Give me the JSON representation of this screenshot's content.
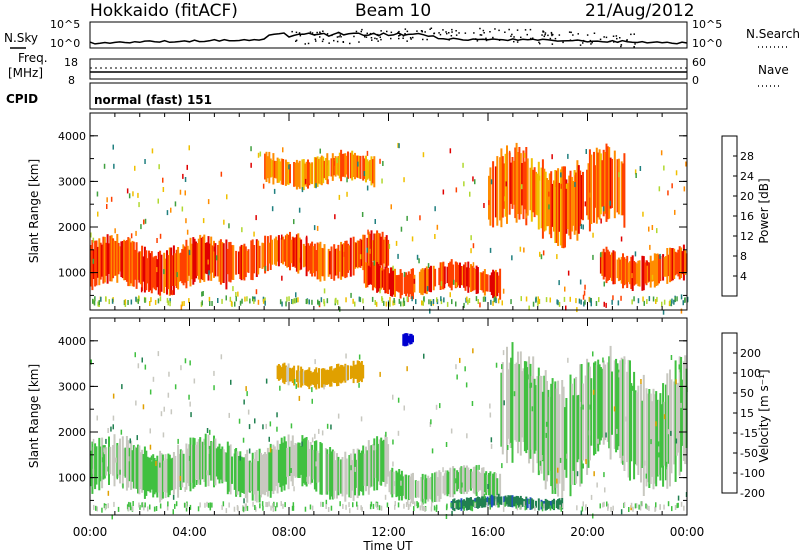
{
  "header": {
    "station": "Hokkaido (fitACF)",
    "beam": "Beam 10",
    "date": "21/Aug/2012"
  },
  "noise_panel": {
    "left_label": "N.Sky",
    "right_label": "N.Search",
    "ticks": [
      "10^5",
      "10^0"
    ],
    "right_ticks": [
      "10^5",
      "10^0"
    ]
  },
  "freq_panel": {
    "label_line1": "Freq.",
    "label_line2": "[MHz]",
    "left_ticks": [
      "18",
      "8"
    ],
    "right_ticks": [
      "60",
      "0"
    ],
    "right_label": "Nave"
  },
  "cpid_panel": {
    "label": "CPID",
    "value": "normal (fast) 151"
  },
  "axes": {
    "xlabel": "Time UT",
    "x_ticks": [
      "00:00",
      "04:00",
      "08:00",
      "12:00",
      "16:00",
      "20:00",
      "00:00"
    ],
    "ylabel": "Slant Range [km]",
    "y_ticks": [
      "4000",
      "3000",
      "2000",
      "1000"
    ]
  },
  "colorbars": {
    "power": {
      "label": "Power [dB]",
      "ticks": [
        "28",
        "24",
        "20",
        "16",
        "12",
        "8",
        "4"
      ],
      "colors": [
        "#e00000",
        "#ff4000",
        "#ff8c00",
        "#f0c000",
        "#b0d830",
        "#40a040",
        "#208080",
        "#0000e0"
      ]
    },
    "velocity": {
      "label": "Velocity [m s⁻¹]",
      "ticks": [
        "200",
        "100",
        "50",
        "15",
        "-15",
        "-50",
        "-100",
        "-200"
      ],
      "colors": [
        "#0000d0",
        "#2050c0",
        "#208050",
        "#40c040",
        "#c8c8c0",
        "#e0a000",
        "#ff6000",
        "#e00000"
      ]
    }
  },
  "chart_data": {
    "type": "heatmap",
    "title": "Hokkaido (fitACF) Beam 10 21/Aug/2012",
    "xlabel": "Time UT",
    "ylabel": "Slant Range [km]",
    "x_range_hours": [
      0,
      24
    ],
    "y_range_km": [
      180,
      4500
    ],
    "panels": [
      {
        "name": "Power",
        "unit": "dB",
        "colorbar_range": [
          0,
          32
        ],
        "bands": [
          {
            "t_start": 0.0,
            "t_end": 5.5,
            "r_low": 600,
            "r_high": 1700,
            "value": 26
          },
          {
            "t_start": 5.5,
            "t_end": 12.0,
            "r_low": 900,
            "r_high": 1800,
            "value": 25
          },
          {
            "t_start": 11.0,
            "t_end": 16.5,
            "r_low": 500,
            "r_high": 1200,
            "value": 27
          },
          {
            "t_start": 7.0,
            "t_end": 11.5,
            "r_low": 2900,
            "r_high": 3600,
            "value": 22
          },
          {
            "t_start": 16.0,
            "t_end": 21.5,
            "r_low": 1800,
            "r_high": 3600,
            "value": 24
          },
          {
            "t_start": 20.5,
            "t_end": 24.0,
            "r_low": 700,
            "r_high": 1500,
            "value": 25
          }
        ]
      },
      {
        "name": "Velocity",
        "unit": "m s^-1",
        "colorbar_range": [
          -200,
          200
        ],
        "bands": [
          {
            "t_start": 0.0,
            "t_end": 12.0,
            "r_low": 600,
            "r_high": 1800,
            "value": 0
          },
          {
            "t_start": 12.0,
            "t_end": 16.5,
            "r_low": 500,
            "r_high": 1200,
            "value": 0
          },
          {
            "t_start": 7.5,
            "t_end": 11.0,
            "r_low": 3000,
            "r_high": 3500,
            "value": -50
          },
          {
            "t_start": 12.5,
            "t_end": 13.0,
            "r_low": 3900,
            "r_high": 4200,
            "value": 200
          },
          {
            "t_start": 16.5,
            "t_end": 24.0,
            "r_low": 900,
            "r_high": 3600,
            "value": 0
          },
          {
            "t_start": 14.5,
            "t_end": 19.0,
            "r_low": 300,
            "r_high": 600,
            "value": 60
          }
        ]
      }
    ]
  }
}
